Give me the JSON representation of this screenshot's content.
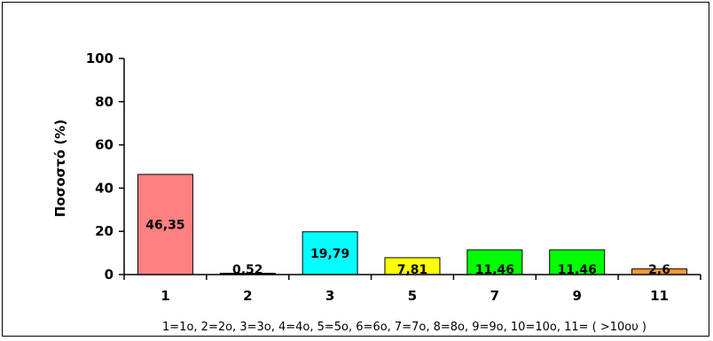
{
  "chart_data": {
    "type": "bar",
    "categories": [
      "1",
      "2",
      "3",
      "5",
      "7",
      "9",
      "11"
    ],
    "values": [
      46.35,
      0.52,
      19.79,
      7.81,
      11.46,
      11.46,
      2.6
    ],
    "value_labels": [
      "46,35",
      "0,52",
      "19,79",
      "7,81",
      "11,46",
      "11,46",
      "2,6"
    ],
    "bar_colors": [
      "#ff8080",
      "#000000",
      "#00ffff",
      "#ffff00",
      "#00ff00",
      "#00ff00",
      "#ff9933"
    ],
    "title": "",
    "xlabel": "1=1ο, 2=2ο, 3=3ο, 4=4ο, 5=5ο, 6=6ο, 7=7ο, 8=8ο, 9=9ο, 10=10ο, 11= ( >10ου )",
    "ylabel": "Ποσοστό (%)",
    "ylim": [
      0,
      100
    ],
    "yticks": [
      "0",
      "20",
      "40",
      "60",
      "80",
      "100"
    ],
    "grid": false,
    "legend": false
  }
}
